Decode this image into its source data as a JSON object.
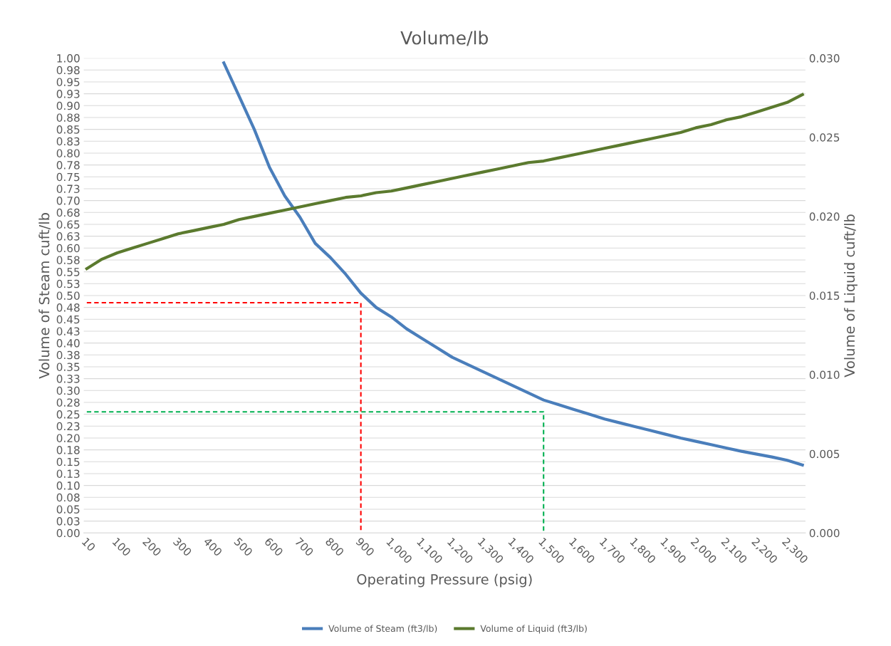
{
  "chart_data": {
    "type": "line",
    "title": "Volume/lb",
    "xlabel": "Operating Pressure (psig)",
    "ylabel": "Volume of Steam cuft/lb",
    "y2label": "Volume of Liquid cuft/lb",
    "categories": [
      "10",
      null,
      "100",
      null,
      "200",
      null,
      "300",
      null,
      "400",
      null,
      "500",
      null,
      "600",
      null,
      "700",
      null,
      "800",
      null,
      "900",
      null,
      "1,000",
      null,
      "1,100",
      null,
      "1,200",
      null,
      "1,300",
      null,
      "1,400",
      null,
      "1,500",
      null,
      "1,600",
      null,
      "1,700",
      null,
      "1,800",
      null,
      "1,900",
      null,
      "2,000",
      null,
      "2,100",
      null,
      "2,200",
      null,
      "2,300",
      null
    ],
    "series": [
      {
        "name": "Volume of Steam (ft3/lb)",
        "color": "#4a7ebb",
        "values": [
          null,
          null,
          null,
          null,
          null,
          null,
          null,
          null,
          null,
          0.99,
          0.92,
          0.85,
          0.77,
          0.71,
          0.665,
          0.61,
          0.58,
          0.545,
          0.505,
          0.475,
          0.455,
          0.43,
          0.41,
          0.39,
          0.37,
          0.355,
          0.34,
          0.325,
          0.31,
          0.295,
          0.28,
          0.27,
          0.26,
          0.25,
          0.24,
          0.232,
          0.224,
          0.216,
          0.208,
          0.2,
          0.193,
          0.186,
          0.179,
          0.172,
          0.166,
          0.16,
          0.153,
          0.143
        ]
      },
      {
        "name": "Volume of Liquid (ft3/lb)",
        "color": "#5b7a2e",
        "axis": "y2",
        "values": [
          0.0167,
          0.0173,
          0.0177,
          0.018,
          0.0183,
          0.0186,
          0.0189,
          0.0191,
          0.0193,
          0.0195,
          0.0198,
          0.02,
          0.0202,
          0.0204,
          0.0206,
          0.0208,
          0.021,
          0.0212,
          0.0213,
          0.0215,
          0.0216,
          0.0218,
          0.022,
          0.0222,
          0.0224,
          0.0226,
          0.0228,
          0.023,
          0.0232,
          0.0234,
          0.0235,
          0.0237,
          0.0239,
          0.0241,
          0.0243,
          0.0245,
          0.0247,
          0.0249,
          0.0251,
          0.0253,
          0.0256,
          0.0258,
          0.0261,
          0.0263,
          0.0266,
          0.0269,
          0.0272,
          0.0277
        ]
      },
      {
        "color": "#ff0000",
        "line_style": "dashed",
        "x": [
          "10",
          "900",
          "900"
        ],
        "values": [
          0.485,
          0.485,
          0
        ]
      },
      {
        "color": "#00b050",
        "line_style": "dashed",
        "x": [
          "10",
          "1,500",
          "1,500"
        ],
        "values": [
          0.255,
          0.255,
          0
        ]
      }
    ],
    "ylim": [
      0,
      1
    ],
    "yticks": [
      {
        "value": 0,
        "label": "0.00"
      },
      {
        "value": 0.025,
        "label": "0.03"
      },
      {
        "value": 0.05,
        "label": "0.05"
      },
      {
        "value": 0.075,
        "label": "0.08"
      },
      {
        "value": 0.1,
        "label": "0.10"
      },
      {
        "value": 0.125,
        "label": "0.13"
      },
      {
        "value": 0.15,
        "label": "0.15"
      },
      {
        "value": 0.175,
        "label": "0.18"
      },
      {
        "value": 0.2,
        "label": "0.20"
      },
      {
        "value": 0.225,
        "label": "0.23"
      },
      {
        "value": 0.25,
        "label": "0.25"
      },
      {
        "value": 0.275,
        "label": "0.28"
      },
      {
        "value": 0.3,
        "label": "0.30"
      },
      {
        "value": 0.325,
        "label": "0.33"
      },
      {
        "value": 0.35,
        "label": "0.35"
      },
      {
        "value": 0.375,
        "label": "0.38"
      },
      {
        "value": 0.4,
        "label": "0.40"
      },
      {
        "value": 0.425,
        "label": "0.43"
      },
      {
        "value": 0.45,
        "label": "0.45"
      },
      {
        "value": 0.475,
        "label": "0.48"
      },
      {
        "value": 0.5,
        "label": "0.50"
      },
      {
        "value": 0.525,
        "label": "0.53"
      },
      {
        "value": 0.55,
        "label": "0.55"
      },
      {
        "value": 0.575,
        "label": "0.58"
      },
      {
        "value": 0.6,
        "label": "0.60"
      },
      {
        "value": 0.625,
        "label": "0.63"
      },
      {
        "value": 0.65,
        "label": "0.65"
      },
      {
        "value": 0.675,
        "label": "0.68"
      },
      {
        "value": 0.7,
        "label": "0.70"
      },
      {
        "value": 0.725,
        "label": "0.73"
      },
      {
        "value": 0.75,
        "label": "0.75"
      },
      {
        "value": 0.775,
        "label": "0.78"
      },
      {
        "value": 0.8,
        "label": "0.80"
      },
      {
        "value": 0.825,
        "label": "0.83"
      },
      {
        "value": 0.85,
        "label": "0.85"
      },
      {
        "value": 0.875,
        "label": "0.88"
      },
      {
        "value": 0.9,
        "label": "0.90"
      },
      {
        "value": 0.925,
        "label": "0.93"
      },
      {
        "value": 0.95,
        "label": "0.95"
      },
      {
        "value": 0.975,
        "label": "0.98"
      },
      {
        "value": 1,
        "label": "1.00"
      }
    ],
    "y2lim": [
      0,
      0.03
    ],
    "y2ticks": [
      {
        "value": 0,
        "label": "0.000"
      },
      {
        "value": 0.005,
        "label": "0.005"
      },
      {
        "value": 0.01,
        "label": "0.010"
      },
      {
        "value": 0.015,
        "label": "0.015"
      },
      {
        "value": 0.02,
        "label": "0.020"
      },
      {
        "value": 0.025,
        "label": "0.025"
      },
      {
        "value": 0.03,
        "label": "0.030"
      }
    ],
    "grid": "y",
    "legend": "bottom",
    "marker": "none",
    "line_style": "solid"
  }
}
